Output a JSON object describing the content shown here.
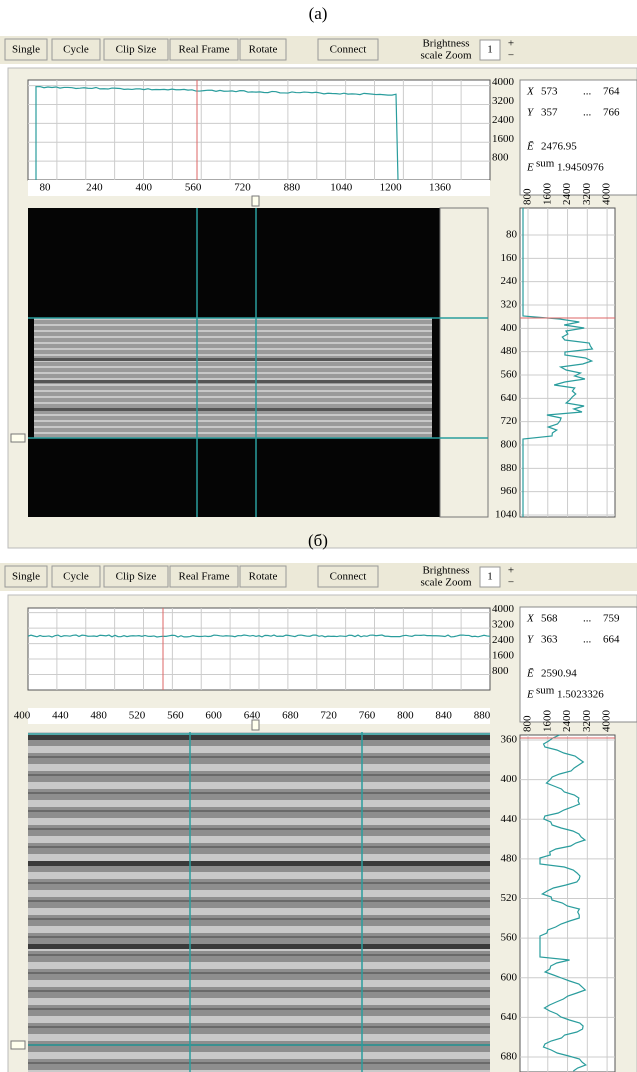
{
  "panels": [
    {
      "label": "(a)",
      "toolbar": {
        "buttons": [
          "Single",
          "Cycle",
          "Clip Size",
          "Real Frame",
          "Rotate",
          "Connect"
        ],
        "brightness": "Brightness",
        "zoom": "scale Zoom",
        "zoom_value": "1",
        "plus": "+",
        "minus": "−"
      },
      "top_plot": {
        "y_ticks": [
          4000,
          3200,
          2400,
          1600,
          800
        ],
        "x_ticks": [
          80,
          240,
          400,
          560,
          720,
          880,
          1040,
          1200,
          1360
        ]
      },
      "side_plot": {
        "x_ticks": [
          800,
          1600,
          2400,
          3200,
          4000
        ],
        "y_ticks": [
          80,
          160,
          240,
          320,
          400,
          480,
          560,
          640,
          720,
          800,
          880,
          960,
          1040
        ]
      },
      "info": {
        "x_label": "X",
        "x_from": 573,
        "x_sep": "...",
        "x_to": 764,
        "y_label": "Y",
        "y_from": 357,
        "y_sep": "...",
        "y_to": 766,
        "e_mean_label": "Ē",
        "e_mean": 2476.95,
        "e_sum_label": "E",
        "e_sum_sup": "sum",
        "e_sum": 1.9450976
      }
    },
    {
      "label": "(б)",
      "toolbar": {
        "buttons": [
          "Single",
          "Cycle",
          "Clip Size",
          "Real Frame",
          "Rotate",
          "Connect"
        ],
        "brightness": "Brightness",
        "zoom": "scale Zoom",
        "zoom_value": "1",
        "plus": "+",
        "minus": "−"
      },
      "top_plot": {
        "y_ticks": [
          4000,
          3200,
          2400,
          1600,
          800
        ],
        "x_ticks": [
          400,
          440,
          480,
          520,
          560,
          600,
          640,
          680,
          720,
          760,
          800,
          840,
          880
        ]
      },
      "side_plot": {
        "x_ticks": [
          800,
          1600,
          2400,
          3200,
          4000
        ],
        "y_ticks": [
          360,
          400,
          440,
          480,
          520,
          560,
          600,
          640,
          680
        ]
      },
      "info": {
        "x_label": "X",
        "x_from": 568,
        "x_sep": "...",
        "x_to": 759,
        "y_label": "Y",
        "y_from": 363,
        "y_sep": "...",
        "y_to": 664,
        "e_mean_label": "Ē",
        "e_mean": 2590.94,
        "e_sum_label": "E",
        "e_sum_sup": "sum",
        "e_sum": 1.5023326
      }
    }
  ]
}
